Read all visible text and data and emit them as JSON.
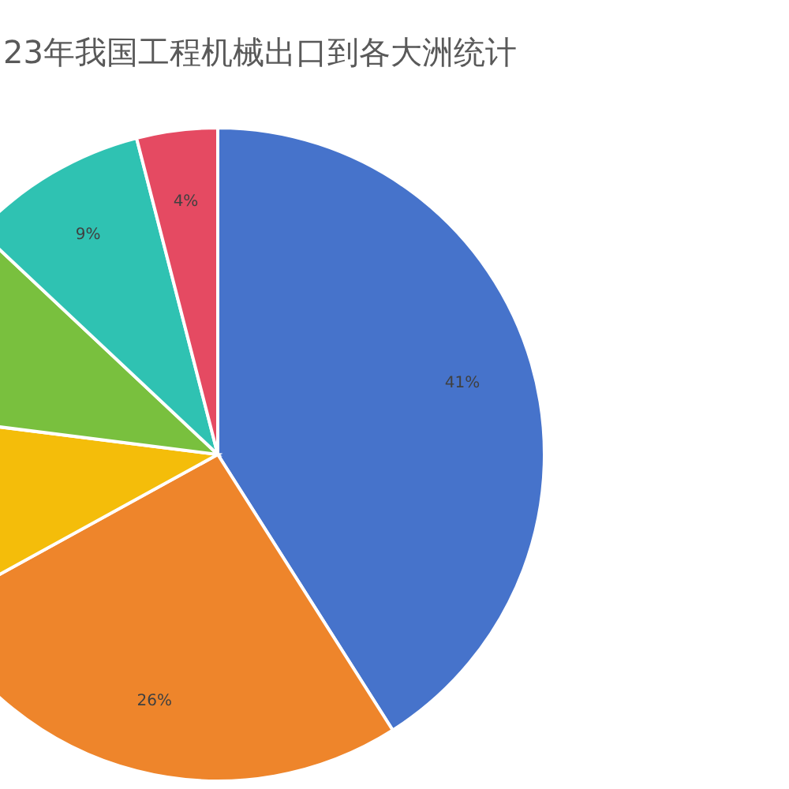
{
  "chart_data": {
    "type": "pie",
    "title": "23年我国工程机械出口到各大洲统计",
    "categories": [
      null,
      null,
      null,
      null,
      null,
      null
    ],
    "values": [
      41,
      26,
      10,
      10,
      9,
      4
    ],
    "colors": [
      "#4673cb",
      "#ee852b",
      "#f4bd0a",
      "#79c03e",
      "#2fc2b2",
      "#e54a62"
    ],
    "value_labels": [
      "41%",
      "26%",
      null,
      null,
      "9%",
      "4%"
    ]
  }
}
